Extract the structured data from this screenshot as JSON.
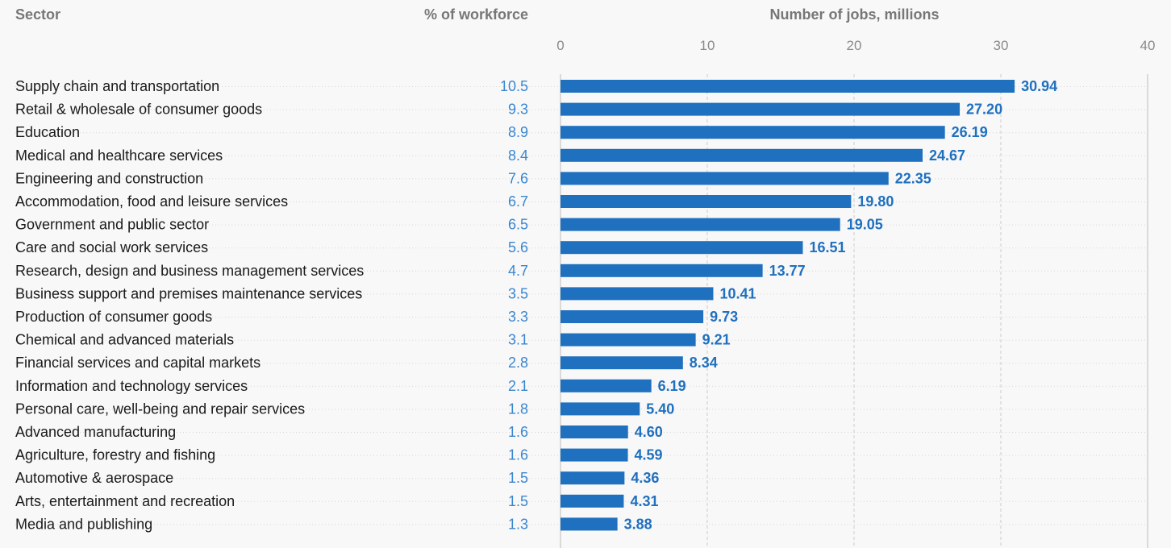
{
  "headers": {
    "sector": "Sector",
    "percent": "% of workforce",
    "jobs": "Number of jobs, millions"
  },
  "colors": {
    "bar": "#1f70bf",
    "value_label": "#1f70bf",
    "percent_text": "#3a86cf",
    "sector_text": "#1a1a1a",
    "axis_text": "#8a8a8a",
    "grid": "#cccccc",
    "background": "#f8f8f8"
  },
  "chart_data": {
    "type": "bar",
    "orientation": "horizontal",
    "xlabel": "Number of jobs, millions",
    "xlim": [
      0,
      40
    ],
    "ticks": [
      0,
      10,
      20,
      30,
      40
    ],
    "grid": true,
    "categories": [
      "Supply chain and transportation",
      "Retail & wholesale of consumer goods",
      "Education",
      "Medical and healthcare services",
      "Engineering and construction",
      "Accommodation, food and leisure services",
      "Government and public sector",
      "Care and social work services",
      "Research, design and business management services",
      "Business support and premises maintenance services",
      "Production of consumer goods",
      "Chemical and advanced materials",
      "Financial services and capital markets",
      "Information and technology services",
      "Personal care, well-being and repair services",
      "Advanced manufacturing",
      "Agriculture, forestry and fishing",
      "Automotive & aerospace",
      "Arts, entertainment and recreation",
      "Media and publishing"
    ],
    "percent_of_workforce": [
      "10.5",
      "9.3",
      "8.9",
      "8.4",
      "7.6",
      "6.7",
      "6.5",
      "5.6",
      "4.7",
      "3.5",
      "3.3",
      "3.1",
      "2.8",
      "2.1",
      "1.8",
      "1.6",
      "1.6",
      "1.5",
      "1.5",
      "1.3"
    ],
    "values": [
      30.94,
      27.2,
      26.19,
      24.67,
      22.35,
      19.8,
      19.05,
      16.51,
      13.77,
      10.41,
      9.73,
      9.21,
      8.34,
      6.19,
      5.4,
      4.6,
      4.59,
      4.36,
      4.31,
      3.88
    ],
    "value_labels": [
      "30.94",
      "27.20",
      "26.19",
      "24.67",
      "22.35",
      "19.80",
      "19.05",
      "16.51",
      "13.77",
      "10.41",
      "9.73",
      "9.21",
      "8.34",
      "6.19",
      "5.40",
      "4.60",
      "4.59",
      "4.36",
      "4.31",
      "3.88"
    ]
  }
}
